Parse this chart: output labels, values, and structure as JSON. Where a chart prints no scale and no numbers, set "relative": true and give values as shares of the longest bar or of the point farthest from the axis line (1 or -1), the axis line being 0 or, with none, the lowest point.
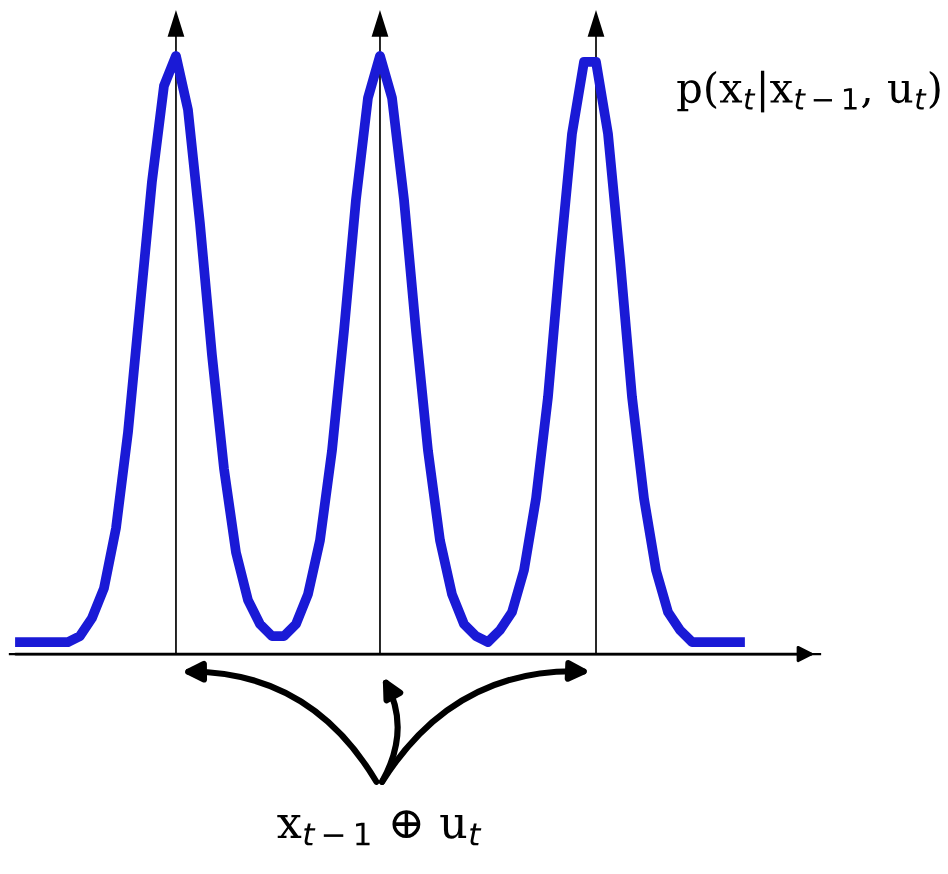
{
  "chart_data": {
    "type": "line",
    "relative": true,
    "color": "#1a1ad6",
    "categories": [
      null,
      null,
      null,
      null,
      null,
      null,
      null,
      null,
      null,
      null,
      null,
      null,
      null,
      null,
      null,
      null,
      null,
      null,
      null,
      null,
      null,
      null,
      null,
      null,
      null,
      null,
      null,
      null,
      null,
      null,
      null,
      null,
      null,
      null,
      null,
      null,
      null,
      null,
      null,
      null,
      null,
      null,
      null,
      null,
      null,
      null,
      null,
      null,
      null,
      null,
      null,
      null,
      null,
      null,
      null,
      null,
      null,
      null,
      null,
      null,
      null
    ],
    "values": [
      0.02,
      0.02,
      0.02,
      0.02,
      0.02,
      0.03,
      0.06,
      0.11,
      0.21,
      0.37,
      0.58,
      0.79,
      0.95,
      1.0,
      0.91,
      0.72,
      0.5,
      0.31,
      0.17,
      0.09,
      0.05,
      0.03,
      0.03,
      0.05,
      0.1,
      0.19,
      0.34,
      0.54,
      0.76,
      0.93,
      1.0,
      0.93,
      0.76,
      0.54,
      0.34,
      0.19,
      0.1,
      0.05,
      0.03,
      0.02,
      0.04,
      0.07,
      0.14,
      0.26,
      0.43,
      0.66,
      0.87,
      0.99,
      0.99,
      0.87,
      0.66,
      0.43,
      0.26,
      0.14,
      0.07,
      0.04,
      0.02,
      0.02,
      0.02,
      0.02,
      0.02
    ],
    "annotations": [
      "p(x$_{t}$|x$_{t−1}$, u$_{t}$)",
      "x$_{t−1}$ ⊕ u$_{t}$"
    ],
    "legend": false,
    "marker": "none",
    "line_style": "solid"
  }
}
